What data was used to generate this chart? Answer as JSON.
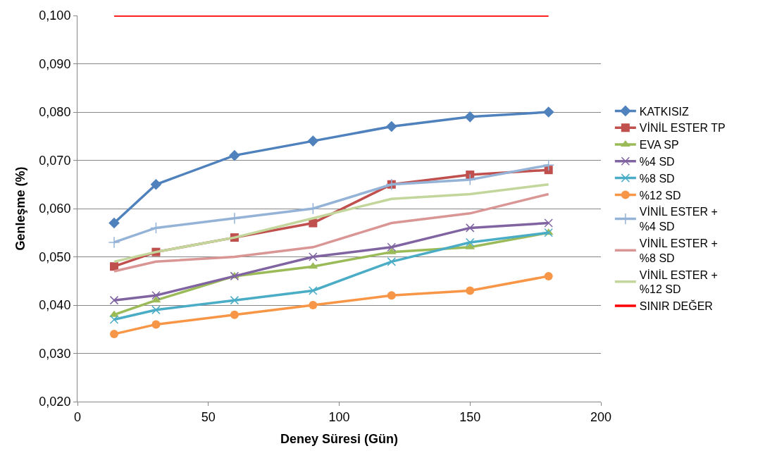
{
  "chart_data": {
    "type": "line",
    "xlabel": "Deney Süresi (Gün)",
    "ylabel": "Genleşme (%)",
    "x": [
      14,
      30,
      60,
      90,
      120,
      150,
      180
    ],
    "series": [
      {
        "name": "KATKISIZ",
        "color": "#4f81bd",
        "marker": "diamond",
        "values": [
          0.057,
          0.065,
          0.071,
          0.074,
          0.077,
          0.079,
          0.08
        ]
      },
      {
        "name": "VİNİL ESTER TP",
        "color": "#c0504d",
        "marker": "square",
        "values": [
          0.048,
          0.051,
          0.054,
          0.057,
          0.065,
          0.067,
          0.068
        ]
      },
      {
        "name": "EVA SP",
        "color": "#9bbb59",
        "marker": "triangle",
        "values": [
          0.038,
          0.041,
          0.046,
          0.048,
          0.051,
          0.052,
          0.055
        ]
      },
      {
        "name": "%4 SD",
        "color": "#8064a2",
        "marker": "cross",
        "values": [
          0.041,
          0.042,
          0.046,
          0.05,
          0.052,
          0.056,
          0.057
        ]
      },
      {
        "name": "%8 SD",
        "color": "#4bacc6",
        "marker": "cross",
        "values": [
          0.037,
          0.039,
          0.041,
          0.043,
          0.049,
          0.053,
          0.055
        ]
      },
      {
        "name": "%12 SD",
        "color": "#f79646",
        "marker": "circle",
        "values": [
          0.034,
          0.036,
          0.038,
          0.04,
          0.042,
          0.043,
          0.046
        ]
      },
      {
        "name": "VİNİL ESTER + %4 SD",
        "color": "#95b3d7",
        "marker": "plus",
        "values": [
          0.053,
          0.056,
          0.058,
          0.06,
          0.065,
          0.066,
          0.069
        ]
      },
      {
        "name": "VİNİL ESTER + %8 SD",
        "color": "#d99694",
        "marker": "none",
        "values": [
          0.047,
          0.049,
          0.05,
          0.052,
          0.057,
          0.059,
          0.063
        ]
      },
      {
        "name": "VİNİL ESTER + %12 SD",
        "color": "#c3d69b",
        "marker": "none",
        "values": [
          0.049,
          0.051,
          0.054,
          0.058,
          0.062,
          0.063,
          0.065
        ]
      },
      {
        "name": "SINIR DEĞER",
        "color": "#ff0000",
        "marker": "none",
        "values": [
          0.1,
          0.1,
          0.1,
          0.1,
          0.1,
          0.1,
          0.1
        ]
      }
    ],
    "xlim": [
      0,
      200
    ],
    "xticks": [
      0,
      50,
      100,
      150,
      200
    ],
    "ylim": [
      0.02,
      0.1
    ],
    "yticks": [
      {
        "value": 0.02,
        "label": "0,020"
      },
      {
        "value": 0.03,
        "label": "0,030"
      },
      {
        "value": 0.04,
        "label": "0,040"
      },
      {
        "value": 0.05,
        "label": "0,050"
      },
      {
        "value": 0.06,
        "label": "0,060"
      },
      {
        "value": 0.07,
        "label": "0,070"
      },
      {
        "value": 0.08,
        "label": "0,080"
      },
      {
        "value": 0.09,
        "label": "0,090"
      },
      {
        "value": 0.1,
        "label": "0,100"
      }
    ],
    "grid": "y",
    "legend": "right",
    "line_style": "solid"
  }
}
